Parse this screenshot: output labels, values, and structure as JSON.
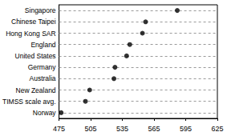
{
  "chart_data": {
    "type": "scatter",
    "orientation": "horizontal",
    "categories": [
      "Singapore",
      "Chinese Taipei",
      "Hong Kong SAR",
      "England",
      "United States",
      "Germany",
      "Australia",
      "New Zealand",
      "TIMSS scale avg.",
      "Norway"
    ],
    "values": [
      587,
      557,
      554,
      542,
      539,
      528,
      527,
      504,
      500,
      477
    ],
    "color": "#000000",
    "marker": "circle",
    "xlim": [
      475,
      625
    ],
    "xticks": [
      475,
      505,
      535,
      565,
      595,
      625
    ],
    "grid": true
  }
}
